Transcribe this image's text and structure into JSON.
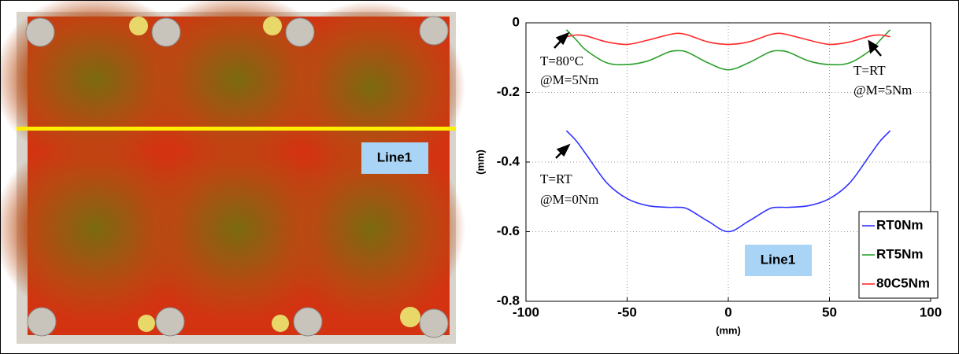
{
  "image": {
    "label": "Line1"
  },
  "chart_data": {
    "type": "line",
    "x": [
      -80,
      -75,
      -70,
      -60,
      -50,
      -40,
      -30,
      -25,
      -20,
      -10,
      0,
      10,
      20,
      25,
      30,
      40,
      50,
      60,
      70,
      75,
      80
    ],
    "series": [
      {
        "name": "RT0Nm",
        "color": "#3333ff",
        "values": [
          -0.31,
          -0.34,
          -0.38,
          -0.46,
          -0.505,
          -0.525,
          -0.53,
          -0.53,
          -0.535,
          -0.57,
          -0.6,
          -0.57,
          -0.535,
          -0.53,
          -0.53,
          -0.525,
          -0.505,
          -0.46,
          -0.38,
          -0.34,
          -0.31
        ]
      },
      {
        "name": "RT5Nm",
        "color": "#2ca02c",
        "values": [
          -0.02,
          -0.05,
          -0.08,
          -0.115,
          -0.12,
          -0.11,
          -0.085,
          -0.08,
          -0.085,
          -0.115,
          -0.135,
          -0.115,
          -0.085,
          -0.08,
          -0.085,
          -0.11,
          -0.12,
          -0.115,
          -0.08,
          -0.05,
          -0.02
        ]
      },
      {
        "name": "80C5Nm",
        "color": "#ff2a2a",
        "values": [
          -0.04,
          -0.035,
          -0.038,
          -0.055,
          -0.062,
          -0.05,
          -0.035,
          -0.03,
          -0.035,
          -0.055,
          -0.062,
          -0.055,
          -0.035,
          -0.03,
          -0.035,
          -0.05,
          -0.062,
          -0.055,
          -0.038,
          -0.035,
          -0.04
        ]
      }
    ],
    "xlim": [
      -100,
      100
    ],
    "xticks": [
      -100,
      -50,
      0,
      50,
      100
    ],
    "ylim": [
      -0.8,
      0
    ],
    "yticks": [
      -0.8,
      -0.6,
      -0.4,
      -0.2,
      0
    ],
    "xlabel": "(mm)",
    "ylabel": "(mm)",
    "grid": true,
    "legend": "lower right",
    "annotations": {
      "t80_line1": "T=80°C",
      "t80_line2": "@M=5Nm",
      "rt5_line1": "T=RT",
      "rt5_line2": "@M=5Nm",
      "rt0_line1": "T=RT",
      "rt0_line2": "@M=0Nm",
      "line_label": "Line1"
    }
  }
}
